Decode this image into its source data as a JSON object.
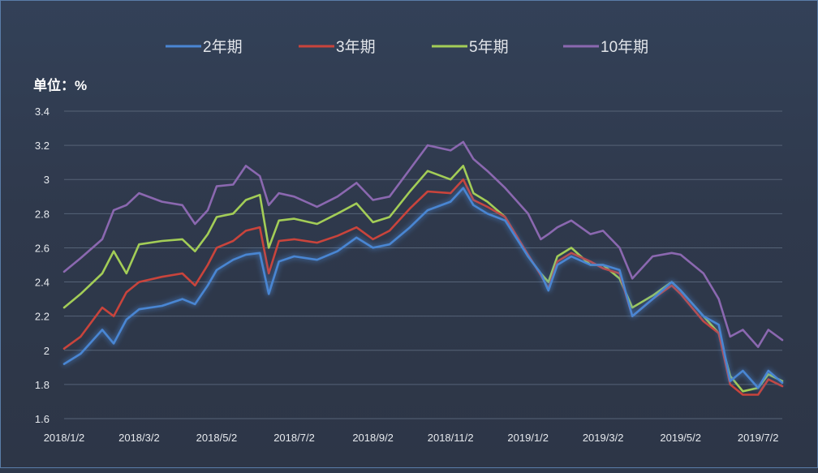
{
  "chart_data": {
    "type": "line",
    "unit_label": "单位：%",
    "y_ticks": [
      "3.4",
      "3.2",
      "3",
      "2.8",
      "2.6",
      "2.4",
      "2.2",
      "2",
      "1.8",
      "1.6"
    ],
    "ylim": [
      1.6,
      3.4
    ],
    "x_tick_labels": [
      "2018/1/2",
      "2018/3/2",
      "2018/5/2",
      "2018/7/2",
      "2018/9/2",
      "2018/11/2",
      "2019/1/2",
      "2019/3/2",
      "2019/5/2",
      "2019/7/2"
    ],
    "x_ticks": [
      "2018-01-02",
      "2018-03-02",
      "2018-05-02",
      "2018-07-02",
      "2018-09-02",
      "2018-11-02",
      "2019-01-02",
      "2019-03-02",
      "2019-05-02",
      "2019-07-02"
    ],
    "xlim": [
      "2018-01-02",
      "2019-07-21"
    ],
    "grid": true,
    "legend_position": "top",
    "series": [
      {
        "name": "2年期",
        "color": "#4a86d3",
        "points": [
          [
            "2018-01-02",
            1.92
          ],
          [
            "2018-01-15",
            1.98
          ],
          [
            "2018-02-01",
            2.12
          ],
          [
            "2018-02-10",
            2.04
          ],
          [
            "2018-02-20",
            2.18
          ],
          [
            "2018-03-02",
            2.24
          ],
          [
            "2018-03-20",
            2.26
          ],
          [
            "2018-04-05",
            2.3
          ],
          [
            "2018-04-15",
            2.27
          ],
          [
            "2018-04-25",
            2.38
          ],
          [
            "2018-05-02",
            2.47
          ],
          [
            "2018-05-15",
            2.53
          ],
          [
            "2018-05-25",
            2.56
          ],
          [
            "2018-06-05",
            2.57
          ],
          [
            "2018-06-12",
            2.33
          ],
          [
            "2018-06-20",
            2.52
          ],
          [
            "2018-07-02",
            2.55
          ],
          [
            "2018-07-20",
            2.53
          ],
          [
            "2018-08-05",
            2.58
          ],
          [
            "2018-08-20",
            2.66
          ],
          [
            "2018-09-02",
            2.6
          ],
          [
            "2018-09-15",
            2.62
          ],
          [
            "2018-10-01",
            2.72
          ],
          [
            "2018-10-15",
            2.82
          ],
          [
            "2018-11-02",
            2.87
          ],
          [
            "2018-11-12",
            2.95
          ],
          [
            "2018-11-20",
            2.85
          ],
          [
            "2018-12-01",
            2.8
          ],
          [
            "2018-12-15",
            2.76
          ],
          [
            "2019-01-02",
            2.55
          ],
          [
            "2019-01-12",
            2.45
          ],
          [
            "2019-01-18",
            2.35
          ],
          [
            "2019-01-25",
            2.5
          ],
          [
            "2019-02-05",
            2.55
          ],
          [
            "2019-02-20",
            2.5
          ],
          [
            "2019-03-02",
            2.5
          ],
          [
            "2019-03-15",
            2.47
          ],
          [
            "2019-03-25",
            2.2
          ],
          [
            "2019-04-10",
            2.3
          ],
          [
            "2019-04-25",
            2.4
          ],
          [
            "2019-05-02",
            2.35
          ],
          [
            "2019-05-20",
            2.2
          ],
          [
            "2019-06-01",
            2.15
          ],
          [
            "2019-06-10",
            1.82
          ],
          [
            "2019-06-20",
            1.88
          ],
          [
            "2019-07-02",
            1.78
          ],
          [
            "2019-07-10",
            1.88
          ],
          [
            "2019-07-21",
            1.81
          ]
        ]
      },
      {
        "name": "3年期",
        "color": "#c9443c",
        "points": [
          [
            "2018-01-02",
            2.01
          ],
          [
            "2018-01-15",
            2.08
          ],
          [
            "2018-02-01",
            2.25
          ],
          [
            "2018-02-10",
            2.2
          ],
          [
            "2018-02-20",
            2.34
          ],
          [
            "2018-03-02",
            2.4
          ],
          [
            "2018-03-20",
            2.43
          ],
          [
            "2018-04-05",
            2.45
          ],
          [
            "2018-04-15",
            2.38
          ],
          [
            "2018-04-25",
            2.5
          ],
          [
            "2018-05-02",
            2.6
          ],
          [
            "2018-05-15",
            2.64
          ],
          [
            "2018-05-25",
            2.7
          ],
          [
            "2018-06-05",
            2.72
          ],
          [
            "2018-06-12",
            2.45
          ],
          [
            "2018-06-20",
            2.64
          ],
          [
            "2018-07-02",
            2.65
          ],
          [
            "2018-07-20",
            2.63
          ],
          [
            "2018-08-05",
            2.67
          ],
          [
            "2018-08-20",
            2.72
          ],
          [
            "2018-09-02",
            2.65
          ],
          [
            "2018-09-15",
            2.7
          ],
          [
            "2018-10-01",
            2.83
          ],
          [
            "2018-10-15",
            2.93
          ],
          [
            "2018-11-02",
            2.92
          ],
          [
            "2018-11-12",
            3.0
          ],
          [
            "2018-11-20",
            2.88
          ],
          [
            "2018-12-01",
            2.84
          ],
          [
            "2018-12-15",
            2.78
          ],
          [
            "2019-01-02",
            2.56
          ],
          [
            "2019-01-12",
            2.44
          ],
          [
            "2019-01-18",
            2.36
          ],
          [
            "2019-01-25",
            2.52
          ],
          [
            "2019-02-05",
            2.57
          ],
          [
            "2019-02-20",
            2.52
          ],
          [
            "2019-03-02",
            2.48
          ],
          [
            "2019-03-15",
            2.45
          ],
          [
            "2019-03-25",
            2.2
          ],
          [
            "2019-04-10",
            2.3
          ],
          [
            "2019-04-25",
            2.38
          ],
          [
            "2019-05-02",
            2.33
          ],
          [
            "2019-05-20",
            2.17
          ],
          [
            "2019-06-01",
            2.1
          ],
          [
            "2019-06-10",
            1.8
          ],
          [
            "2019-06-20",
            1.74
          ],
          [
            "2019-07-02",
            1.74
          ],
          [
            "2019-07-10",
            1.83
          ],
          [
            "2019-07-21",
            1.79
          ]
        ]
      },
      {
        "name": "5年期",
        "color": "#a3cd57",
        "points": [
          [
            "2018-01-02",
            2.25
          ],
          [
            "2018-01-15",
            2.33
          ],
          [
            "2018-02-01",
            2.45
          ],
          [
            "2018-02-10",
            2.58
          ],
          [
            "2018-02-20",
            2.45
          ],
          [
            "2018-03-02",
            2.62
          ],
          [
            "2018-03-20",
            2.64
          ],
          [
            "2018-04-05",
            2.65
          ],
          [
            "2018-04-15",
            2.58
          ],
          [
            "2018-04-25",
            2.68
          ],
          [
            "2018-05-02",
            2.78
          ],
          [
            "2018-05-15",
            2.8
          ],
          [
            "2018-05-25",
            2.88
          ],
          [
            "2018-06-05",
            2.91
          ],
          [
            "2018-06-12",
            2.6
          ],
          [
            "2018-06-20",
            2.76
          ],
          [
            "2018-07-02",
            2.77
          ],
          [
            "2018-07-20",
            2.74
          ],
          [
            "2018-08-05",
            2.8
          ],
          [
            "2018-08-20",
            2.86
          ],
          [
            "2018-09-02",
            2.75
          ],
          [
            "2018-09-15",
            2.78
          ],
          [
            "2018-10-01",
            2.93
          ],
          [
            "2018-10-15",
            3.05
          ],
          [
            "2018-11-02",
            3.0
          ],
          [
            "2018-11-12",
            3.08
          ],
          [
            "2018-11-20",
            2.92
          ],
          [
            "2018-12-01",
            2.87
          ],
          [
            "2018-12-15",
            2.78
          ],
          [
            "2019-01-02",
            2.55
          ],
          [
            "2019-01-12",
            2.45
          ],
          [
            "2019-01-18",
            2.4
          ],
          [
            "2019-01-25",
            2.55
          ],
          [
            "2019-02-05",
            2.6
          ],
          [
            "2019-02-20",
            2.5
          ],
          [
            "2019-03-02",
            2.5
          ],
          [
            "2019-03-15",
            2.42
          ],
          [
            "2019-03-25",
            2.25
          ],
          [
            "2019-04-10",
            2.32
          ],
          [
            "2019-04-25",
            2.4
          ],
          [
            "2019-05-02",
            2.35
          ],
          [
            "2019-05-20",
            2.2
          ],
          [
            "2019-06-01",
            2.1
          ],
          [
            "2019-06-10",
            1.85
          ],
          [
            "2019-06-20",
            1.76
          ],
          [
            "2019-07-02",
            1.78
          ],
          [
            "2019-07-10",
            1.86
          ],
          [
            "2019-07-21",
            1.82
          ]
        ]
      },
      {
        "name": "10年期",
        "color": "#8b68b0",
        "points": [
          [
            "2018-01-02",
            2.46
          ],
          [
            "2018-01-15",
            2.54
          ],
          [
            "2018-02-01",
            2.65
          ],
          [
            "2018-02-10",
            2.82
          ],
          [
            "2018-02-20",
            2.85
          ],
          [
            "2018-03-02",
            2.92
          ],
          [
            "2018-03-20",
            2.87
          ],
          [
            "2018-04-05",
            2.85
          ],
          [
            "2018-04-15",
            2.74
          ],
          [
            "2018-04-25",
            2.82
          ],
          [
            "2018-05-02",
            2.96
          ],
          [
            "2018-05-15",
            2.97
          ],
          [
            "2018-05-25",
            3.08
          ],
          [
            "2018-06-05",
            3.02
          ],
          [
            "2018-06-12",
            2.85
          ],
          [
            "2018-06-20",
            2.92
          ],
          [
            "2018-07-02",
            2.9
          ],
          [
            "2018-07-20",
            2.84
          ],
          [
            "2018-08-05",
            2.9
          ],
          [
            "2018-08-20",
            2.98
          ],
          [
            "2018-09-02",
            2.88
          ],
          [
            "2018-09-15",
            2.9
          ],
          [
            "2018-10-01",
            3.06
          ],
          [
            "2018-10-15",
            3.2
          ],
          [
            "2018-11-02",
            3.17
          ],
          [
            "2018-11-12",
            3.22
          ],
          [
            "2018-11-20",
            3.12
          ],
          [
            "2018-12-01",
            3.05
          ],
          [
            "2018-12-15",
            2.95
          ],
          [
            "2019-01-02",
            2.8
          ],
          [
            "2019-01-12",
            2.65
          ],
          [
            "2019-01-18",
            2.68
          ],
          [
            "2019-01-25",
            2.72
          ],
          [
            "2019-02-05",
            2.76
          ],
          [
            "2019-02-20",
            2.68
          ],
          [
            "2019-03-02",
            2.7
          ],
          [
            "2019-03-15",
            2.6
          ],
          [
            "2019-03-25",
            2.42
          ],
          [
            "2019-04-10",
            2.55
          ],
          [
            "2019-04-25",
            2.57
          ],
          [
            "2019-05-02",
            2.56
          ],
          [
            "2019-05-20",
            2.45
          ],
          [
            "2019-06-01",
            2.3
          ],
          [
            "2019-06-10",
            2.08
          ],
          [
            "2019-06-20",
            2.12
          ],
          [
            "2019-07-02",
            2.02
          ],
          [
            "2019-07-10",
            2.12
          ],
          [
            "2019-07-21",
            2.06
          ]
        ]
      }
    ]
  }
}
